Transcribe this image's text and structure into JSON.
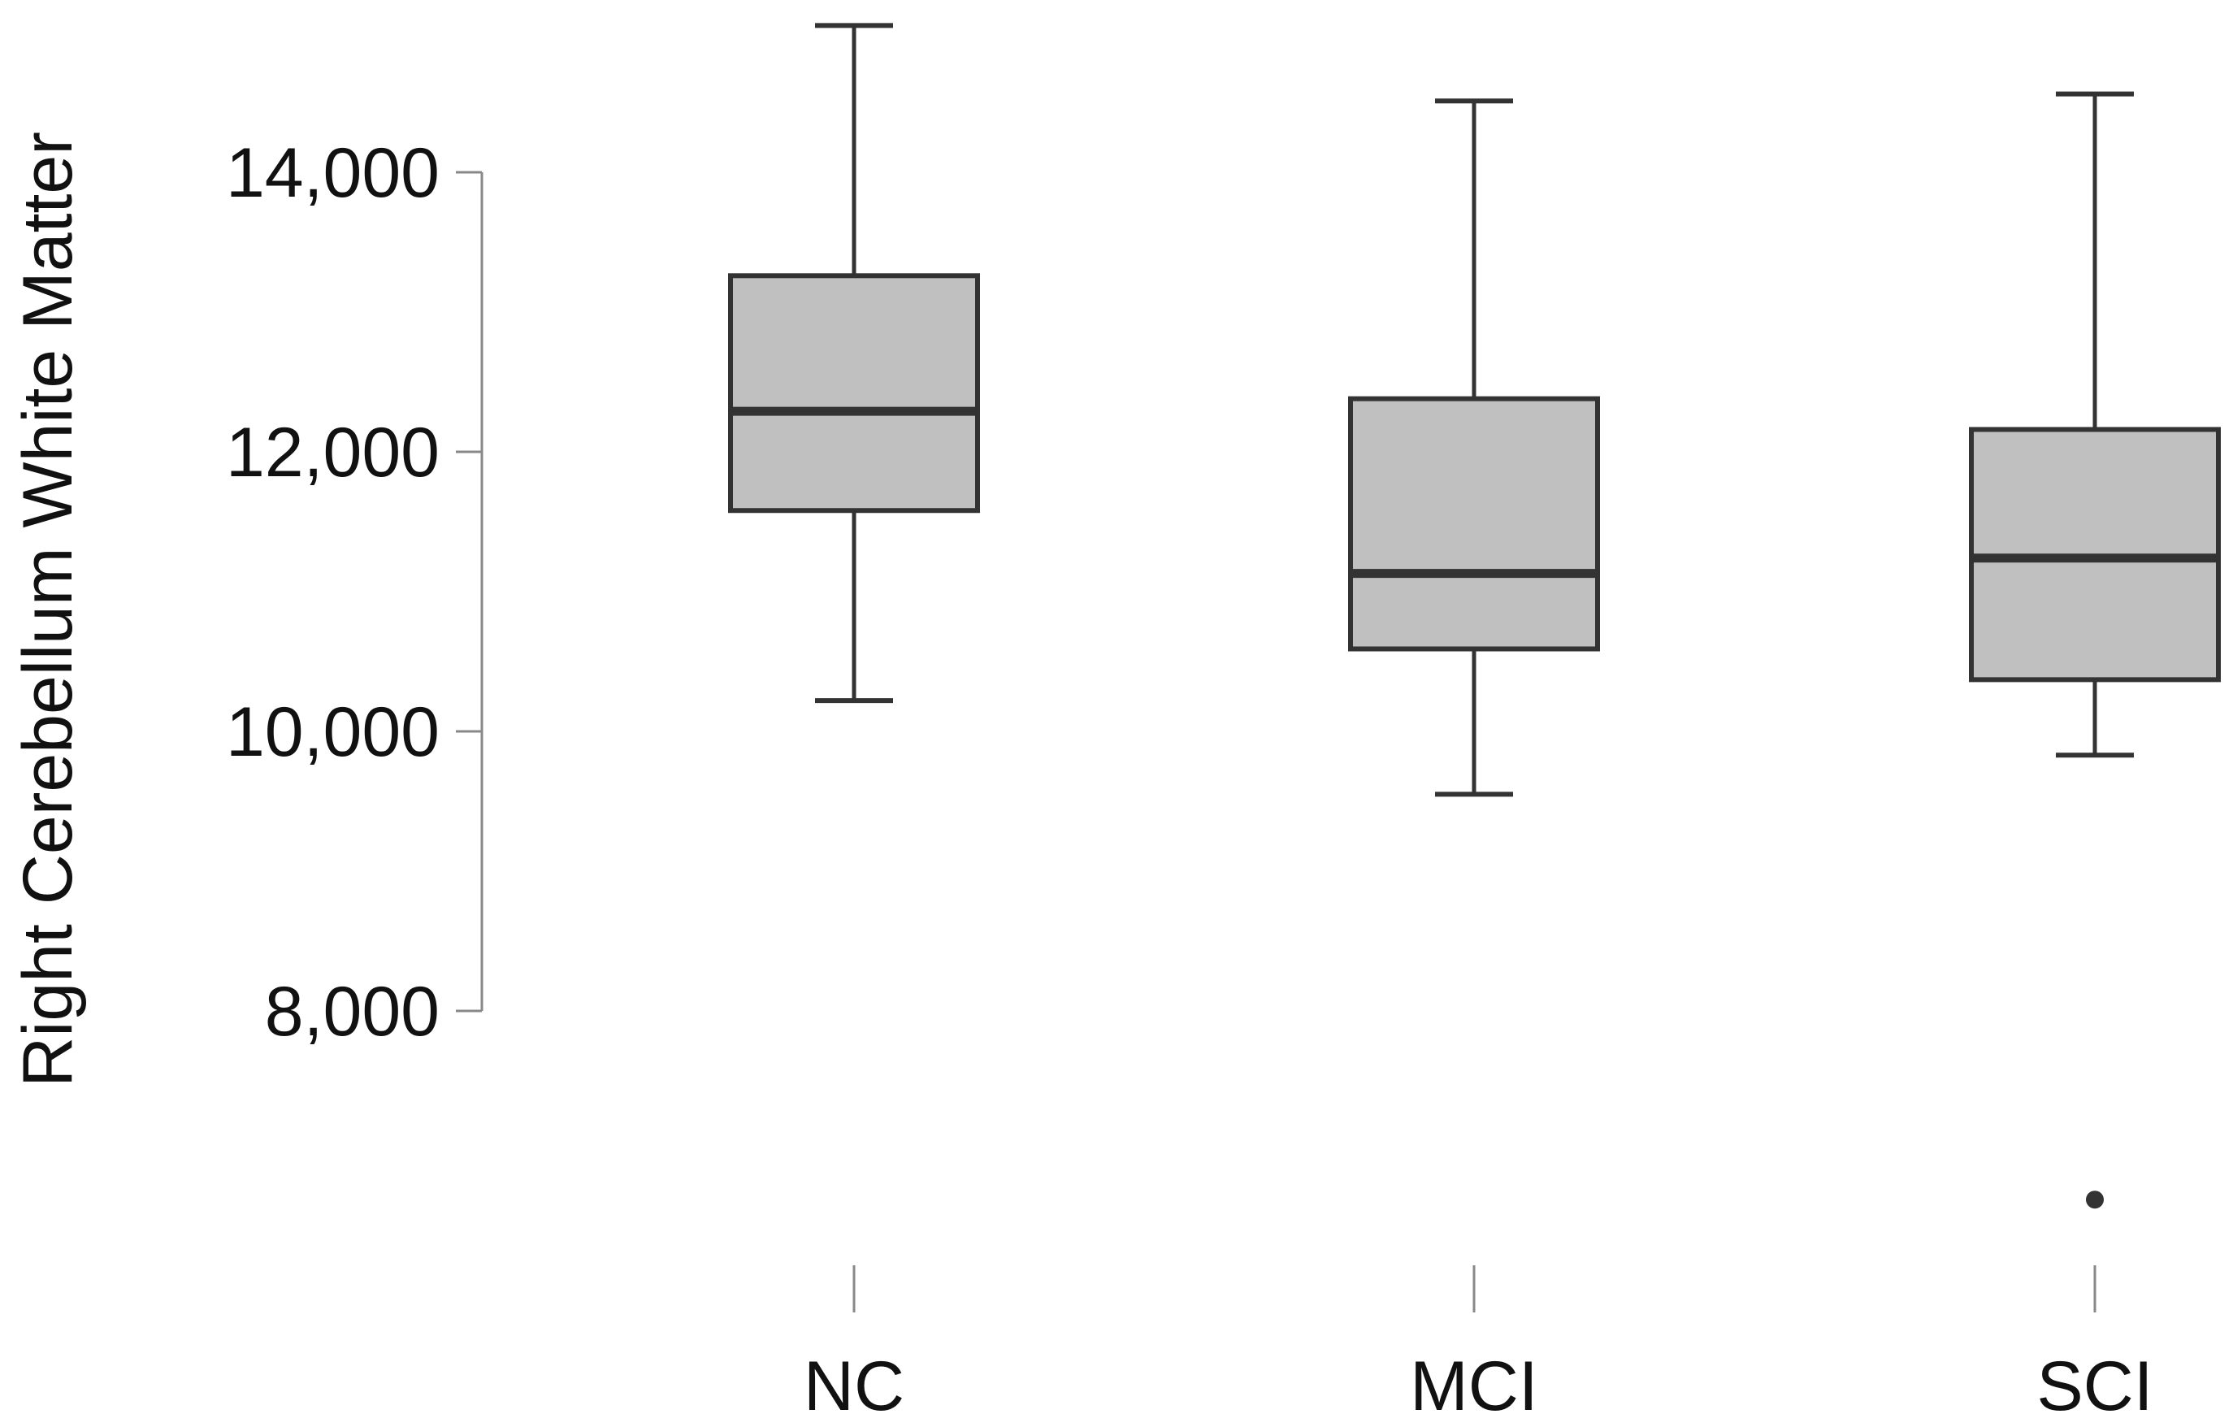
{
  "chart_data": {
    "type": "boxplot",
    "title": "",
    "xlabel": "",
    "ylabel": "Right Cerebellum White Matter",
    "ylim": [
      6300,
      15400
    ],
    "y_ticks": [
      8000,
      10000,
      12000,
      14000
    ],
    "y_tick_labels": [
      "8,000",
      "10,000",
      "12,000",
      "14,000"
    ],
    "categories": [
      "NC",
      "MCI",
      "SCI"
    ],
    "boxes": [
      {
        "category": "NC",
        "whisker_low": 10220,
        "q1": 11580,
        "median": 12290,
        "q3": 13260,
        "whisker_high": 15050,
        "outliers": []
      },
      {
        "category": "MCI",
        "whisker_low": 9550,
        "q1": 10590,
        "median": 11130,
        "q3": 12380,
        "whisker_high": 14510,
        "outliers": []
      },
      {
        "category": "SCI",
        "whisker_low": 9830,
        "q1": 10370,
        "median": 11240,
        "q3": 12160,
        "whisker_high": 14560,
        "outliers": [
          6650
        ]
      }
    ],
    "grid": false,
    "box_fill": "#c0c0c0",
    "line_color": "#333333",
    "axis_color": "#888888"
  }
}
